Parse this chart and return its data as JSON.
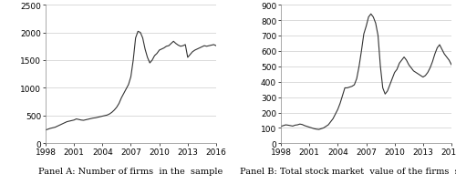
{
  "panel_a_label": "Panel A: Number of firms  in the  sample",
  "panel_b_label": "Panel B: Total stock market  value of the firms  sampled",
  "xlim": [
    1998,
    2016
  ],
  "panel_a_ylim": [
    0,
    2500
  ],
  "panel_b_ylim": [
    0,
    900
  ],
  "panel_a_yticks": [
    0,
    500,
    1000,
    1500,
    2000,
    2500
  ],
  "panel_b_yticks": [
    0,
    100,
    200,
    300,
    400,
    500,
    600,
    700,
    800,
    900
  ],
  "xticks": [
    1998,
    2001,
    2004,
    2007,
    2010,
    2013,
    2016
  ],
  "line_color": "#333333",
  "background_color": "#ffffff",
  "panel_a_data": {
    "years": [
      1998.0,
      1998.25,
      1998.5,
      1998.75,
      1999.0,
      1999.25,
      1999.5,
      1999.75,
      2000.0,
      2000.25,
      2000.5,
      2000.75,
      2001.0,
      2001.25,
      2001.5,
      2001.75,
      2002.0,
      2002.25,
      2002.5,
      2002.75,
      2003.0,
      2003.25,
      2003.5,
      2003.75,
      2004.0,
      2004.25,
      2004.5,
      2004.75,
      2005.0,
      2005.25,
      2005.5,
      2005.75,
      2006.0,
      2006.25,
      2006.5,
      2006.75,
      2007.0,
      2007.25,
      2007.5,
      2007.75,
      2008.0,
      2008.25,
      2008.5,
      2008.75,
      2009.0,
      2009.25,
      2009.5,
      2009.75,
      2010.0,
      2010.25,
      2010.5,
      2010.75,
      2011.0,
      2011.25,
      2011.5,
      2011.75,
      2012.0,
      2012.25,
      2012.5,
      2012.75,
      2013.0,
      2013.25,
      2013.5,
      2013.75,
      2014.0,
      2014.25,
      2014.5,
      2014.75,
      2015.0,
      2015.25,
      2015.5,
      2015.75,
      2016.0
    ],
    "values": [
      240,
      255,
      270,
      280,
      290,
      310,
      330,
      350,
      370,
      390,
      400,
      410,
      420,
      440,
      430,
      420,
      415,
      425,
      435,
      445,
      455,
      460,
      470,
      480,
      490,
      500,
      510,
      530,
      560,
      600,
      650,
      720,
      820,
      900,
      980,
      1060,
      1200,
      1500,
      1900,
      2020,
      2000,
      1900,
      1700,
      1550,
      1450,
      1500,
      1580,
      1620,
      1680,
      1700,
      1720,
      1750,
      1760,
      1800,
      1840,
      1800,
      1770,
      1750,
      1760,
      1780,
      1550,
      1600,
      1650,
      1680,
      1700,
      1720,
      1740,
      1760,
      1750,
      1760,
      1770,
      1780,
      1760
    ]
  },
  "panel_b_data": {
    "years": [
      1998.0,
      1998.25,
      1998.5,
      1998.75,
      1999.0,
      1999.25,
      1999.5,
      1999.75,
      2000.0,
      2000.25,
      2000.5,
      2000.75,
      2001.0,
      2001.25,
      2001.5,
      2001.75,
      2002.0,
      2002.25,
      2002.5,
      2002.75,
      2003.0,
      2003.25,
      2003.5,
      2003.75,
      2004.0,
      2004.25,
      2004.5,
      2004.75,
      2005.0,
      2005.25,
      2005.5,
      2005.75,
      2006.0,
      2006.25,
      2006.5,
      2006.75,
      2007.0,
      2007.25,
      2007.5,
      2007.75,
      2008.0,
      2008.25,
      2008.5,
      2008.75,
      2009.0,
      2009.25,
      2009.5,
      2009.75,
      2010.0,
      2010.25,
      2010.5,
      2010.75,
      2011.0,
      2011.25,
      2011.5,
      2011.75,
      2012.0,
      2012.25,
      2012.5,
      2012.75,
      2013.0,
      2013.25,
      2013.5,
      2013.75,
      2014.0,
      2014.25,
      2014.5,
      2014.75,
      2015.0,
      2015.25,
      2015.5,
      2015.75,
      2016.0
    ],
    "values": [
      110,
      115,
      120,
      118,
      115,
      112,
      118,
      120,
      125,
      122,
      115,
      110,
      105,
      100,
      95,
      92,
      90,
      95,
      100,
      110,
      120,
      140,
      160,
      190,
      220,
      260,
      310,
      360,
      360,
      365,
      370,
      380,
      420,
      500,
      600,
      710,
      760,
      820,
      840,
      820,
      780,
      700,
      500,
      360,
      320,
      340,
      380,
      420,
      460,
      480,
      520,
      540,
      560,
      540,
      510,
      490,
      470,
      460,
      450,
      440,
      430,
      440,
      460,
      490,
      530,
      580,
      620,
      640,
      610,
      580,
      560,
      540,
      510
    ]
  },
  "label_fontsize": 7,
  "tick_fontsize": 6.5,
  "linewidth": 0.8,
  "grid_color": "#cccccc",
  "spine_color": "#888888"
}
